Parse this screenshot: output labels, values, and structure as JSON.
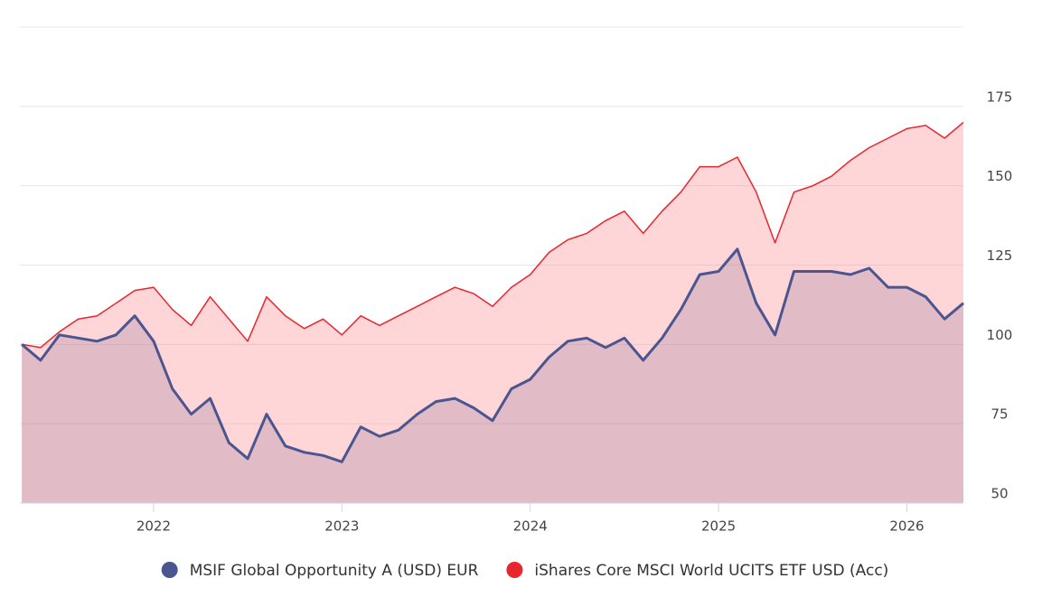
{
  "chart_data": {
    "type": "line",
    "x": [
      2021.3,
      2021.4,
      2021.5,
      2021.6,
      2021.7,
      2021.8,
      2021.9,
      2022.0,
      2022.1,
      2022.2,
      2022.3,
      2022.4,
      2022.5,
      2022.6,
      2022.7,
      2022.8,
      2022.9,
      2023.0,
      2023.1,
      2023.2,
      2023.3,
      2023.4,
      2023.5,
      2023.6,
      2023.7,
      2023.8,
      2023.9,
      2024.0,
      2024.1,
      2024.2,
      2024.3,
      2024.4,
      2024.5,
      2024.6,
      2024.7,
      2024.8,
      2024.9,
      2025.0,
      2025.1,
      2025.2,
      2025.3,
      2025.4,
      2025.5,
      2025.6,
      2025.7,
      2025.8,
      2025.9,
      2026.0,
      2026.1,
      2026.2,
      2026.3
    ],
    "series": [
      {
        "name": "MSIF Global Opportunity A (USD) EUR",
        "color": "#4b5590",
        "values": [
          100,
          95,
          103,
          102,
          101,
          103,
          109,
          101,
          86,
          78,
          83,
          69,
          64,
          78,
          68,
          66,
          65,
          63,
          74,
          71,
          73,
          78,
          82,
          83,
          80,
          76,
          86,
          89,
          96,
          101,
          102,
          99,
          102,
          95,
          102,
          111,
          122,
          123,
          130,
          113,
          103,
          123,
          123,
          123,
          122,
          124,
          118,
          118,
          115,
          108,
          113
        ]
      },
      {
        "name": "iShares Core MSCI World UCITS ETF USD (Acc)",
        "color": "#e8262d",
        "values": [
          100,
          99,
          104,
          108,
          109,
          113,
          117,
          118,
          111,
          106,
          115,
          108,
          101,
          115,
          109,
          105,
          108,
          103,
          109,
          106,
          109,
          112,
          115,
          118,
          116,
          112,
          118,
          122,
          129,
          133,
          135,
          139,
          142,
          135,
          142,
          148,
          156,
          156,
          159,
          148,
          132,
          148,
          150,
          153,
          158,
          162,
          165,
          168,
          169,
          165,
          170
        ]
      }
    ],
    "xlim": [
      2021.29,
      2026.3
    ],
    "xticks": [
      2022,
      2023,
      2024,
      2025,
      2026
    ],
    "ylim": [
      50,
      200
    ],
    "yticks": [
      50,
      75,
      100,
      125,
      150,
      175
    ],
    "grid": true
  }
}
